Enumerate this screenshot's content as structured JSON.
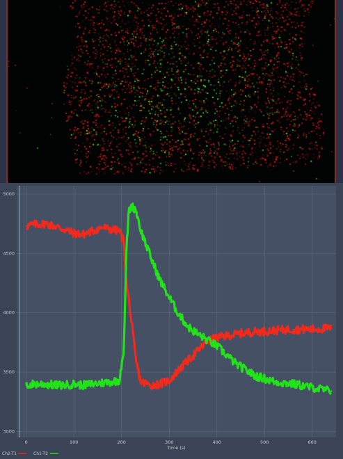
{
  "viewer": {
    "image_label": "",
    "channel_colors": {
      "red": "#e5261c",
      "green": "#2bd21c"
    }
  },
  "chart_data": {
    "type": "line",
    "title": "",
    "xlabel": "Time (s)",
    "ylabel": "",
    "xlim": [
      -20,
      650
    ],
    "ylim": [
      2950,
      5070
    ],
    "xticks": [
      0,
      100,
      200,
      300,
      400,
      500,
      600
    ],
    "yticks": [
      3000,
      3500,
      4000,
      4500,
      5000
    ],
    "xtick_labels": [
      "0",
      "100",
      "200",
      "300",
      "400",
      "500",
      "600"
    ],
    "ytick_labels": [
      "3000",
      "3500",
      "4000",
      "4500",
      "5000"
    ],
    "grid": true,
    "legend_position": "bottom-left",
    "series": [
      {
        "name": "Ch2-T1",
        "color": "#f02a1c",
        "x": [
          0,
          20,
          40,
          60,
          80,
          100,
          120,
          140,
          160,
          180,
          195,
          205,
          210,
          215,
          220,
          230,
          240,
          260,
          280,
          300,
          320,
          340,
          360,
          380,
          400,
          440,
          480,
          520,
          560,
          600,
          640
        ],
        "y": [
          4730,
          4745,
          4750,
          4730,
          4700,
          4670,
          4660,
          4690,
          4720,
          4700,
          4690,
          4600,
          4250,
          4120,
          3950,
          3600,
          3420,
          3390,
          3400,
          3430,
          3520,
          3600,
          3680,
          3760,
          3790,
          3820,
          3840,
          3850,
          3860,
          3860,
          3870
        ]
      },
      {
        "name": "Ch1-T2",
        "color": "#22e21a",
        "x": [
          0,
          20,
          40,
          60,
          80,
          100,
          120,
          140,
          160,
          180,
          195,
          205,
          210,
          215,
          220,
          230,
          240,
          260,
          280,
          300,
          320,
          340,
          360,
          380,
          400,
          440,
          480,
          520,
          560,
          600,
          640
        ],
        "y": [
          3390,
          3400,
          3400,
          3390,
          3390,
          3400,
          3390,
          3400,
          3410,
          3420,
          3430,
          3700,
          4500,
          4850,
          4900,
          4870,
          4700,
          4480,
          4280,
          4130,
          3990,
          3880,
          3820,
          3770,
          3720,
          3570,
          3470,
          3420,
          3400,
          3370,
          3340
        ]
      }
    ]
  }
}
